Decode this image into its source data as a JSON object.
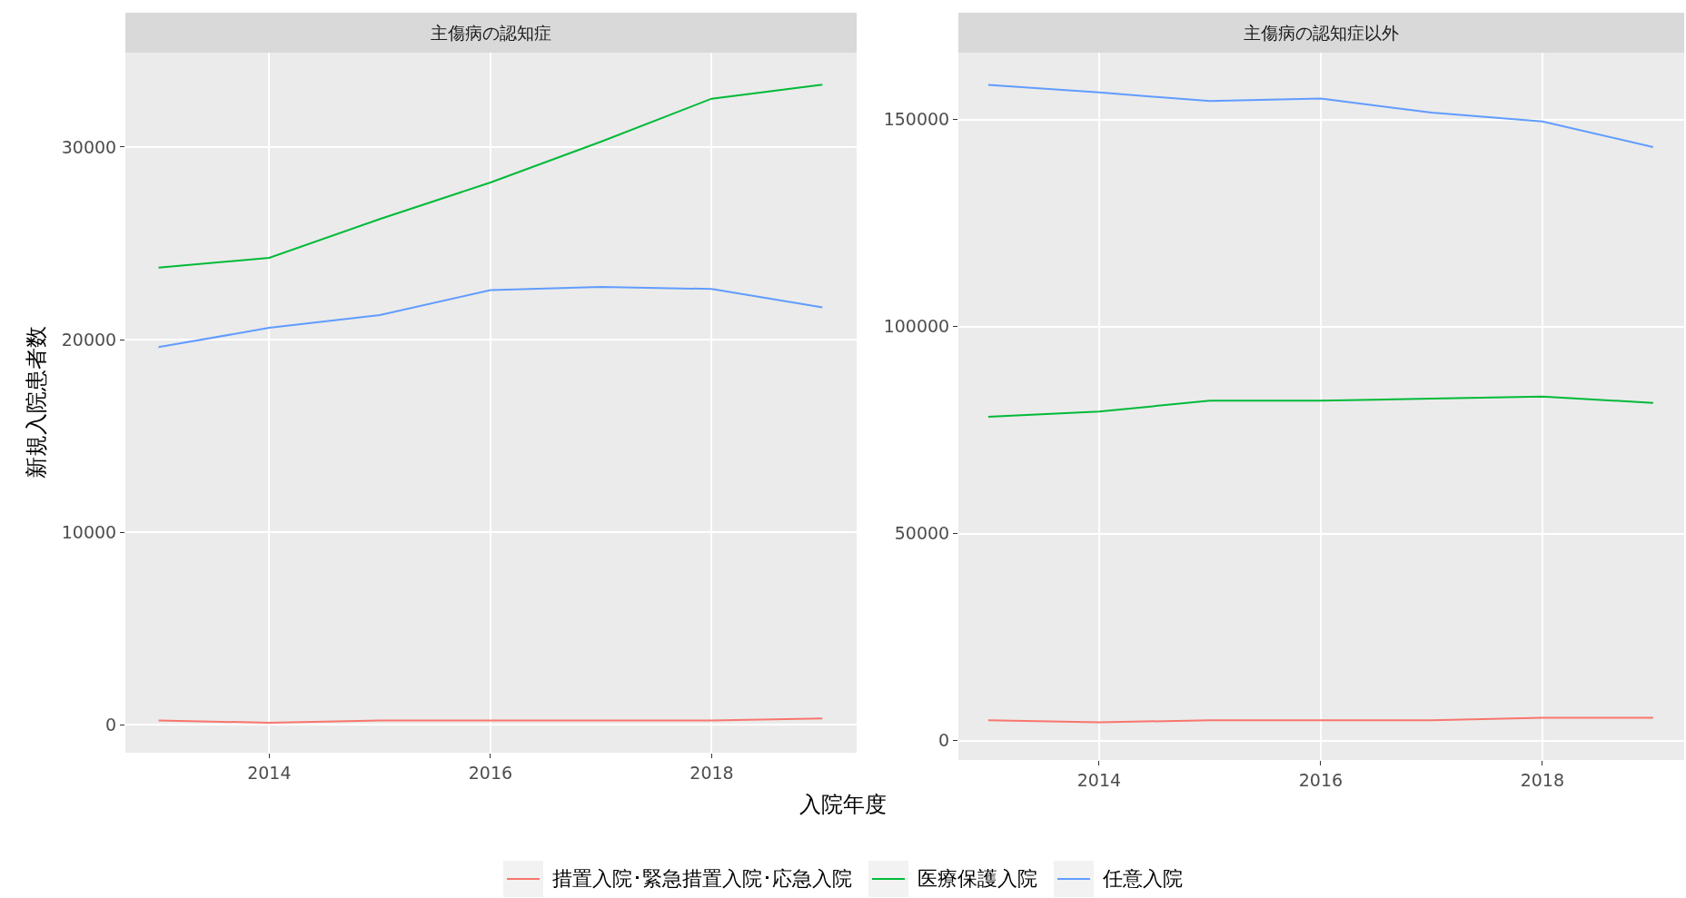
{
  "chart_data": [
    {
      "type": "line",
      "title": "主傷病の認知症",
      "xlabel": "入院年度",
      "ylabel": "新規入院患者数",
      "x": [
        2013,
        2014,
        2015,
        2016,
        2017,
        2018,
        2019
      ],
      "xlim": [
        2012.7,
        2019.31
      ],
      "xticks": [
        2014,
        2016,
        2018
      ],
      "ylim": [
        -1450,
        34900
      ],
      "yticks": [
        0,
        10000,
        20000,
        30000
      ],
      "grid": true,
      "legend": "bottom",
      "series": [
        {
          "name": "措置入院･緊急措置入院･応急入院",
          "color": "#f8766d",
          "values": [
            220,
            110,
            220,
            220,
            220,
            220,
            330
          ]
        },
        {
          "name": "医療保護入院",
          "color": "#00ba38",
          "values": [
            23740,
            24250,
            26260,
            28160,
            30280,
            32510,
            33240
          ]
        },
        {
          "name": "任意入院",
          "color": "#619cff",
          "values": [
            19610,
            20610,
            21280,
            22570,
            22740,
            22630,
            21680
          ]
        }
      ]
    },
    {
      "type": "line",
      "title": "主傷病の認知症以外",
      "x": [
        2013,
        2014,
        2015,
        2016,
        2017,
        2018,
        2019
      ],
      "xlim": [
        2012.73,
        2019.28
      ],
      "xticks": [
        2014,
        2016,
        2018
      ],
      "ylim": [
        -4700,
        166200
      ],
      "yticks": [
        0,
        50000,
        100000,
        150000
      ],
      "grid": true,
      "series": [
        {
          "color": "#f8766d",
          "values": [
            4900,
            4400,
            4900,
            4900,
            4900,
            5500,
            5500
          ]
        },
        {
          "color": "#00ba38",
          "values": [
            78200,
            79500,
            82100,
            82100,
            82600,
            83100,
            81600
          ]
        },
        {
          "color": "#619cff",
          "values": [
            158400,
            156600,
            154500,
            155100,
            151700,
            149600,
            143400
          ]
        }
      ]
    }
  ]
}
